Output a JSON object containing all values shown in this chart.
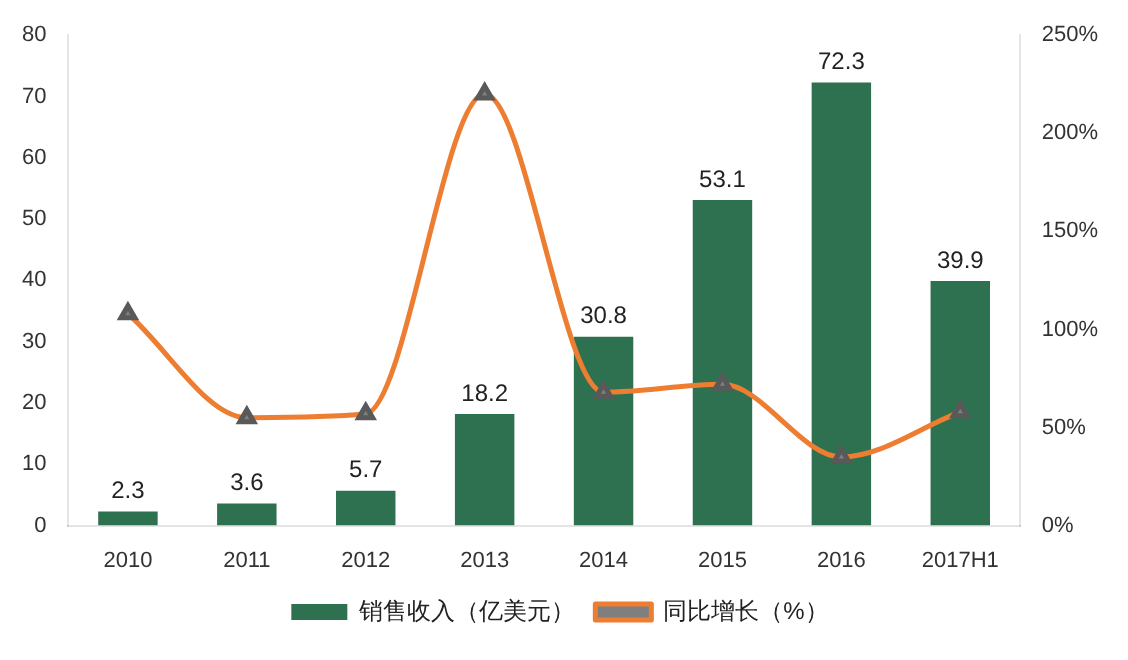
{
  "chart_data": {
    "type": "bar",
    "categories": [
      "2010",
      "2011",
      "2012",
      "2013",
      "2014",
      "2015",
      "2016",
      "2017H1"
    ],
    "series": [
      {
        "name": "销售收入（亿美元）",
        "color": "#2e7150",
        "values": [
          2.3,
          3.6,
          5.7,
          18.2,
          30.8,
          53.1,
          72.3,
          39.9
        ],
        "value_labels": [
          "2.3",
          "3.6",
          "5.7",
          "18.2",
          "30.8",
          "53.1",
          "72.3",
          "39.9"
        ]
      },
      {
        "name": "同比增长（%）",
        "type": "line",
        "axis": "y2",
        "color": "#ed7d31",
        "marker": "triangle",
        "values": [
          108,
          55,
          57,
          220,
          68,
          72,
          35,
          58
        ]
      }
    ],
    "ylim": [
      0,
      80
    ],
    "yticks": [
      0,
      10,
      20,
      30,
      40,
      50,
      60,
      70,
      80
    ],
    "y2lim": [
      0,
      250
    ],
    "y2ticks": [
      {
        "value": 0,
        "label": "0%"
      },
      {
        "value": 50,
        "label": "50%"
      },
      {
        "value": 100,
        "label": "100%"
      },
      {
        "value": 150,
        "label": "150%"
      },
      {
        "value": 200,
        "label": "200%"
      },
      {
        "value": 250,
        "label": "250%"
      }
    ],
    "grid": false,
    "legend": "bottom"
  }
}
